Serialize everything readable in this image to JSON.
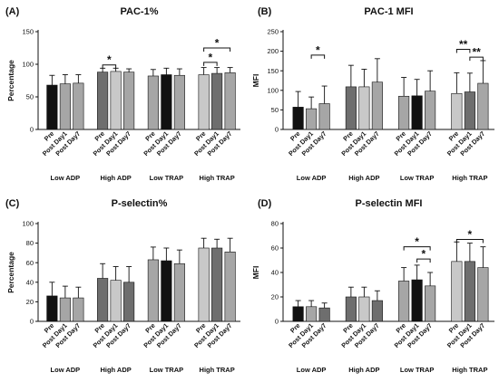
{
  "colors": {
    "pre": "#111111",
    "post_day1": "#6e6e6e",
    "post_day7": "#a6a6a6",
    "pre_light": "#c8c8c8"
  },
  "chart_data": [
    {
      "type": "bar",
      "panel": "(A)",
      "title": "PAC-1%",
      "ylabel": "Percentage",
      "ylim": [
        0,
        150
      ],
      "yticks": [
        0,
        50,
        100,
        150
      ],
      "bar_labels": [
        "Pre",
        "Post Day1",
        "Post Day7"
      ],
      "groups": [
        {
          "name": "Low ADP",
          "values": [
            68,
            70,
            71
          ],
          "errors": [
            15,
            14,
            13
          ],
          "colors": [
            "#111111",
            "#a6a6a6",
            "#a6a6a6"
          ]
        },
        {
          "name": "High ADP",
          "values": [
            88,
            89,
            88
          ],
          "errors": [
            6,
            5,
            5
          ],
          "colors": [
            "#6e6e6e",
            "#c8c8c8",
            "#a6a6a6"
          ]
        },
        {
          "name": "Low TRAP",
          "values": [
            82,
            84,
            83
          ],
          "errors": [
            10,
            10,
            10
          ],
          "colors": [
            "#a6a6a6",
            "#111111",
            "#a6a6a6"
          ]
        },
        {
          "name": "High TRAP",
          "values": [
            84,
            86,
            87
          ],
          "errors": [
            11,
            9,
            8
          ],
          "colors": [
            "#c8c8c8",
            "#6e6e6e",
            "#a6a6a6"
          ]
        }
      ],
      "annotations": [
        {
          "group": 1,
          "from": 0,
          "to": 1,
          "label": "*",
          "y": 99
        },
        {
          "group": 3,
          "from": 0,
          "to": 1,
          "label": "*",
          "y": 103
        },
        {
          "group": 3,
          "from": 0,
          "to": 2,
          "label": "*",
          "y": 125
        }
      ]
    },
    {
      "type": "bar",
      "panel": "(B)",
      "title": "PAC-1 MFI",
      "ylabel": "MFI",
      "ylim": [
        0,
        250
      ],
      "yticks": [
        0,
        50,
        100,
        150,
        200,
        250
      ],
      "bar_labels": [
        "Pre",
        "Post Day1",
        "Post Day7"
      ],
      "groups": [
        {
          "name": "Low ADP",
          "values": [
            57,
            53,
            66
          ],
          "errors": [
            40,
            30,
            45
          ],
          "colors": [
            "#111111",
            "#a6a6a6",
            "#a6a6a6"
          ]
        },
        {
          "name": "High ADP",
          "values": [
            109,
            109,
            121
          ],
          "errors": [
            55,
            45,
            60
          ],
          "colors": [
            "#6e6e6e",
            "#c8c8c8",
            "#a6a6a6"
          ]
        },
        {
          "name": "Low TRAP",
          "values": [
            85,
            86,
            98
          ],
          "errors": [
            48,
            42,
            52
          ],
          "colors": [
            "#a6a6a6",
            "#111111",
            "#a6a6a6"
          ]
        },
        {
          "name": "High TRAP",
          "values": [
            92,
            96,
            118
          ],
          "errors": [
            53,
            48,
            58
          ],
          "colors": [
            "#c8c8c8",
            "#6e6e6e",
            "#a6a6a6"
          ]
        }
      ],
      "annotations": [
        {
          "group": 0,
          "from": 1,
          "to": 2,
          "label": "*",
          "y": 190
        },
        {
          "group": 3,
          "from": 0,
          "to": 1,
          "label": "**",
          "y": 205
        },
        {
          "group": 3,
          "from": 1,
          "to": 2,
          "label": "**",
          "y": 185
        }
      ]
    },
    {
      "type": "bar",
      "panel": "(C)",
      "title": "P-selectin%",
      "ylabel": "Percentage",
      "ylim": [
        0,
        100
      ],
      "yticks": [
        0,
        20,
        40,
        60,
        80,
        100
      ],
      "bar_labels": [
        "Pre",
        "Post Day1",
        "Post Day7"
      ],
      "groups": [
        {
          "name": "Low ADP",
          "values": [
            26,
            24,
            24
          ],
          "errors": [
            14,
            12,
            11
          ],
          "colors": [
            "#111111",
            "#a6a6a6",
            "#a6a6a6"
          ]
        },
        {
          "name": "High ADP",
          "values": [
            44,
            42,
            40
          ],
          "errors": [
            15,
            14,
            16
          ],
          "colors": [
            "#6e6e6e",
            "#c8c8c8",
            "#6e6e6e"
          ]
        },
        {
          "name": "Low TRAP",
          "values": [
            63,
            62,
            59
          ],
          "errors": [
            13,
            13,
            14
          ],
          "colors": [
            "#a6a6a6",
            "#111111",
            "#a6a6a6"
          ]
        },
        {
          "name": "High TRAP",
          "values": [
            75,
            75,
            71
          ],
          "errors": [
            10,
            9,
            14
          ],
          "colors": [
            "#c8c8c8",
            "#6e6e6e",
            "#a6a6a6"
          ]
        }
      ],
      "annotations": []
    },
    {
      "type": "bar",
      "panel": "(D)",
      "title": "P-selectin MFI",
      "ylabel": "MFI",
      "ylim": [
        0,
        80
      ],
      "yticks": [
        0,
        20,
        40,
        60,
        80
      ],
      "bar_labels": [
        "Pre",
        "Post Day1",
        "Post Day7"
      ],
      "groups": [
        {
          "name": "Low ADP",
          "values": [
            12,
            12,
            11
          ],
          "errors": [
            5,
            5,
            4
          ],
          "colors": [
            "#111111",
            "#a6a6a6",
            "#6e6e6e"
          ]
        },
        {
          "name": "High ADP",
          "values": [
            20,
            20,
            17
          ],
          "errors": [
            8,
            8,
            8
          ],
          "colors": [
            "#6e6e6e",
            "#c8c8c8",
            "#6e6e6e"
          ]
        },
        {
          "name": "Low TRAP",
          "values": [
            33,
            34,
            29
          ],
          "errors": [
            11,
            12,
            11
          ],
          "colors": [
            "#a6a6a6",
            "#111111",
            "#a6a6a6"
          ]
        },
        {
          "name": "High TRAP",
          "values": [
            49,
            49,
            44
          ],
          "errors": [
            16,
            15,
            17
          ],
          "colors": [
            "#c8c8c8",
            "#6e6e6e",
            "#a6a6a6"
          ]
        }
      ],
      "annotations": [
        {
          "group": 2,
          "from": 0,
          "to": 2,
          "label": "*",
          "y": 61
        },
        {
          "group": 2,
          "from": 1,
          "to": 2,
          "label": "*",
          "y": 51
        },
        {
          "group": 3,
          "from": 0,
          "to": 2,
          "label": "*",
          "y": 67
        }
      ]
    }
  ]
}
